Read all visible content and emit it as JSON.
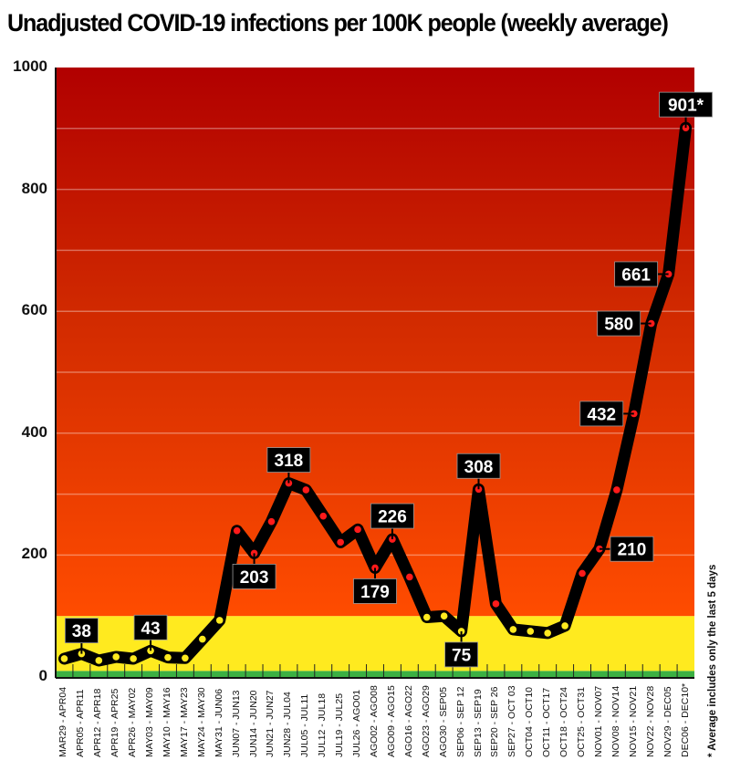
{
  "chart_data": {
    "type": "line",
    "title": "Unadjusted COVID-19 infections per 100K people (weekly average)",
    "xlabel": "",
    "ylabel": "",
    "ylim": [
      0,
      1000
    ],
    "yticks": [
      "0",
      "200",
      "400",
      "600",
      "800",
      "1000"
    ],
    "grid": true,
    "footnote": "* Average includes only the last 5 days",
    "zones": [
      {
        "from": 0,
        "to": 10,
        "color": "#3cb043"
      },
      {
        "from": 10,
        "to": 100,
        "color": "#ffea1f"
      },
      {
        "from": 100,
        "to": 1000,
        "gradient": [
          "#ff4d00",
          "#b30000"
        ]
      }
    ],
    "categories": [
      "MAR29 - APR04",
      "APR05 - APR11",
      "APR12 - APR18",
      "APR19 - APR25",
      "APR26 - MAY02",
      "MAY03 - MAY09",
      "MAY10 - MAY16",
      "MAY17 - MAY23",
      "MAY24 - MAY30",
      "MAY31 - JUN06",
      "JUN07 - JUN13",
      "JUN14 - JUN20",
      "JUN21 - JUN27",
      "JUN28 - JUL04",
      "JUL05 - JUL11",
      "JUL12 - JUL18",
      "JUL19 - JUL25",
      "JUL26 - AGO01",
      "AGO02 - AGO08",
      "AGO09 - AGO15",
      "AGO16 - AGO22",
      "AGO23 - AGO29",
      "AGO30 - SEP05",
      "SEP06 - SEP 12",
      "SEP13 - SEP19",
      "SEP20 - SEP 26",
      "SEP27 - OCT 03",
      "OCT04 - OCT10",
      "OCT11 - OCT17",
      "OCT18 - OCT24",
      "OCT25 - OCT31",
      "NOV01 - NOV07",
      "NOV08 - NOV14",
      "NOV15 - NOV21",
      "NOV22 - NOV28",
      "NOV29 - DEC05",
      "DEC06 - DEC10*"
    ],
    "series": [
      {
        "name": "Infections per 100K",
        "values": [
          30,
          38,
          27,
          33,
          30,
          43,
          32,
          31,
          62,
          93,
          240,
          203,
          255,
          318,
          307,
          264,
          221,
          242,
          179,
          226,
          164,
          98,
          100,
          75,
          308,
          120,
          78,
          75,
          72,
          84,
          170,
          210,
          307,
          432,
          580,
          661,
          901
        ]
      }
    ],
    "annotations": [
      {
        "index": 1,
        "text": "38",
        "side": "above"
      },
      {
        "index": 5,
        "text": "43",
        "side": "above"
      },
      {
        "index": 11,
        "text": "203",
        "side": "below"
      },
      {
        "index": 13,
        "text": "318",
        "side": "above"
      },
      {
        "index": 18,
        "text": "179",
        "side": "below"
      },
      {
        "index": 19,
        "text": "226",
        "side": "above"
      },
      {
        "index": 23,
        "text": "75",
        "side": "below"
      },
      {
        "index": 24,
        "text": "308",
        "side": "above"
      },
      {
        "index": 31,
        "text": "210",
        "side": "right"
      },
      {
        "index": 33,
        "text": "432",
        "side": "left"
      },
      {
        "index": 34,
        "text": "580",
        "side": "left"
      },
      {
        "index": 35,
        "text": "661",
        "side": "left"
      },
      {
        "index": 36,
        "text": "901*",
        "side": "above"
      }
    ]
  }
}
